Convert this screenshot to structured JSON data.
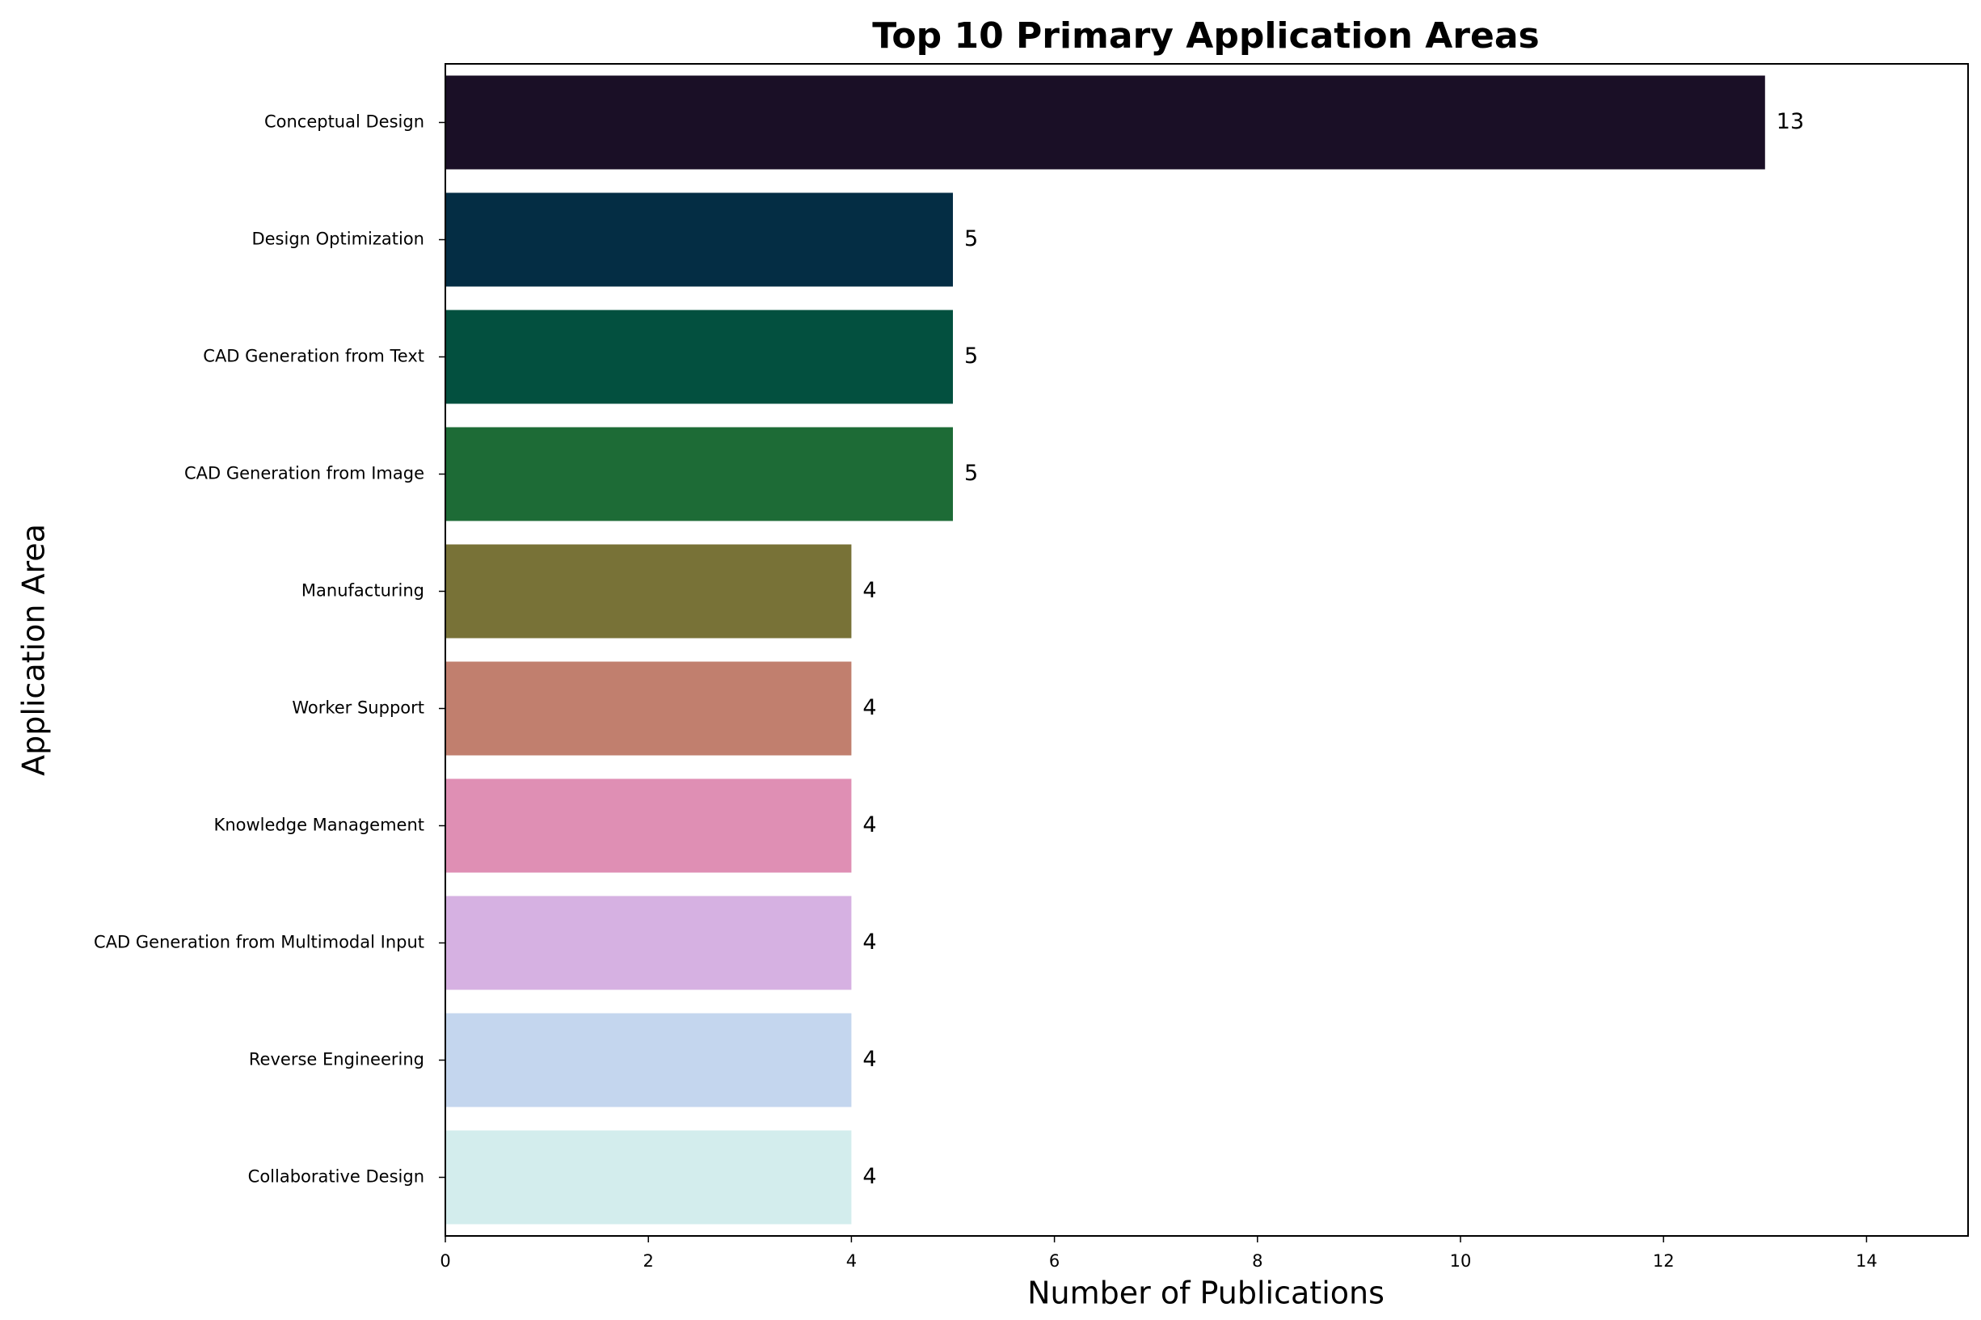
{
  "chart_data": {
    "type": "hbar",
    "title": "Top 10 Primary Application Areas",
    "x_label": "Number of Publications",
    "y_label": "Application Area",
    "categories": [
      "Conceptual Design",
      "Design Optimization",
      "CAD Generation from Text",
      "CAD Generation from Image",
      "Manufacturing",
      "Worker Support",
      "Knowledge Management",
      "CAD Generation from Multimodal Input",
      "Reverse Engineering",
      "Collaborative Design"
    ],
    "values": [
      13,
      5,
      5,
      5,
      4,
      4,
      4,
      4,
      4,
      4
    ],
    "colors": [
      "#1a0f26",
      "#042d44",
      "#03503f",
      "#1d6b36",
      "#787237",
      "#c17f6e",
      "#df8fb4",
      "#d6b1e2",
      "#c4d6ee",
      "#d3eded"
    ],
    "xlim": [
      0,
      15
    ],
    "xticks": [
      0,
      2,
      4,
      6,
      8,
      10,
      12,
      14
    ],
    "grid": false
  }
}
